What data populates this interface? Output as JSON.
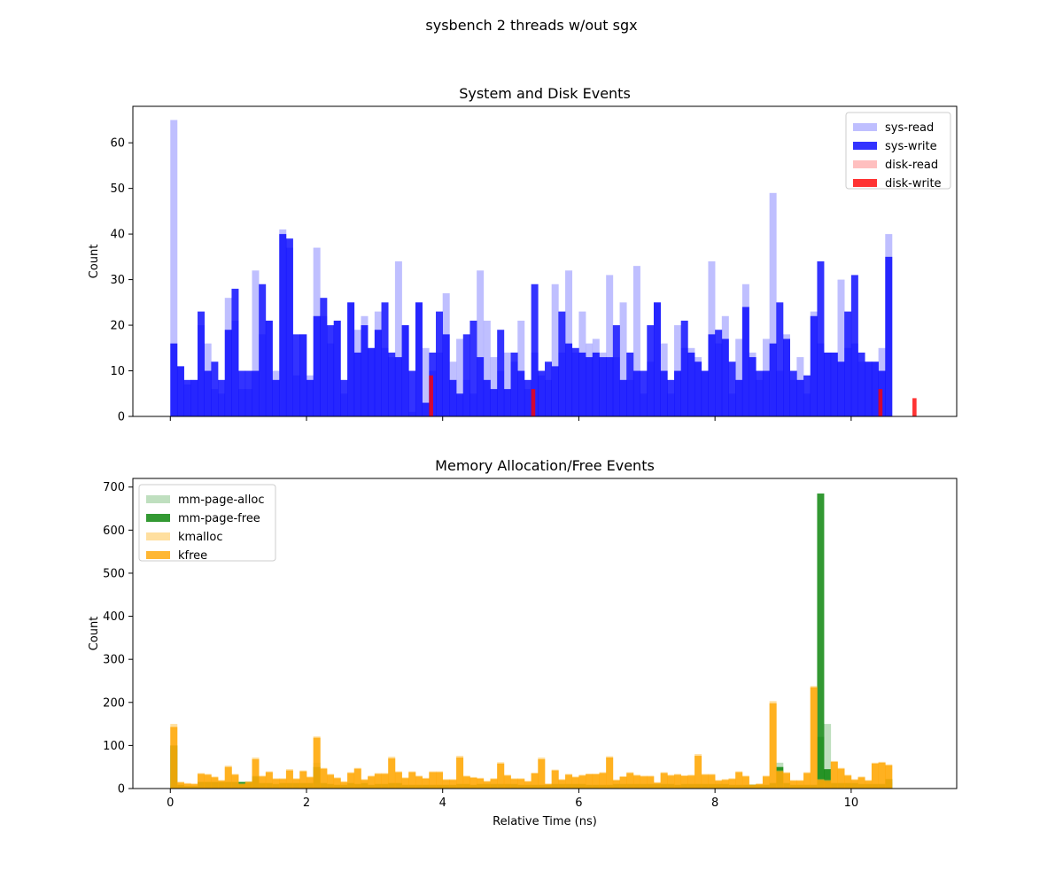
{
  "figure_title": "sysbench 2 threads w/out sgx",
  "chart_data": [
    {
      "type": "bar",
      "title": "System and Disk Events",
      "xlabel": "",
      "ylabel": "Count",
      "xlim": [
        -0.55,
        11.55
      ],
      "ylim": [
        0,
        68
      ],
      "yticks": [
        0,
        10,
        20,
        30,
        40,
        50,
        60
      ],
      "xticks": [
        0,
        2,
        4,
        6,
        8,
        10
      ],
      "show_x_tick_labels": false,
      "legend_position": "upper right",
      "bin_start": 0.0,
      "bin_width": 0.1,
      "series": [
        {
          "name": "sys-read",
          "color": "#7f7fff",
          "values": [
            65,
            11,
            7,
            8,
            20,
            16,
            6,
            5,
            26,
            21,
            6,
            6,
            32,
            18,
            21,
            10,
            41,
            37,
            9,
            18,
            9,
            37,
            22,
            16,
            21,
            5,
            25,
            19,
            22,
            15,
            23,
            15,
            13,
            34,
            20,
            1,
            25,
            15,
            10,
            14,
            27,
            12,
            17,
            8,
            5,
            32,
            21,
            13,
            10,
            14,
            12,
            21,
            6,
            14,
            9,
            8,
            29,
            14,
            32,
            14,
            23,
            16,
            17,
            14,
            31,
            13,
            25,
            8,
            33,
            5,
            12,
            25,
            16,
            5,
            20,
            15,
            15,
            13,
            10,
            34,
            16,
            22,
            5,
            17,
            29,
            14,
            8,
            17,
            49,
            10,
            18,
            8,
            13,
            5,
            23,
            16,
            14,
            14,
            30,
            15,
            16,
            12,
            12,
            12,
            15,
            40
          ]
        },
        {
          "name": "sys-write",
          "color": "#0000ff",
          "values": [
            16,
            11,
            8,
            8,
            23,
            10,
            12,
            8,
            19,
            28,
            10,
            10,
            10,
            29,
            21,
            8,
            40,
            39,
            18,
            18,
            8,
            22,
            26,
            20,
            21,
            8,
            25,
            14,
            20,
            15,
            19,
            25,
            14,
            13,
            20,
            10,
            25,
            3,
            14,
            23,
            18,
            8,
            5,
            18,
            21,
            13,
            8,
            6,
            19,
            6,
            14,
            10,
            8,
            29,
            10,
            12,
            11,
            23,
            16,
            15,
            14,
            13,
            14,
            13,
            13,
            20,
            8,
            14,
            10,
            10,
            20,
            25,
            10,
            8,
            10,
            21,
            14,
            12,
            10,
            18,
            19,
            17,
            12,
            8,
            24,
            13,
            10,
            10,
            16,
            25,
            17,
            10,
            8,
            9,
            22,
            34,
            14,
            14,
            12,
            23,
            31,
            14,
            12,
            12,
            10,
            35
          ]
        },
        {
          "name": "disk-read",
          "color": "#ff7f7f",
          "values": []
        },
        {
          "name": "disk-write",
          "color": "#ff0000",
          "bars": [
            {
              "x": 3.8,
              "y": 9
            },
            {
              "x": 5.3,
              "y": 6
            },
            {
              "x": 10.4,
              "y": 6
            },
            {
              "x": 10.9,
              "y": 4
            }
          ]
        }
      ]
    },
    {
      "type": "bar",
      "title": "Memory Allocation/Free Events",
      "xlabel": "Relative Time (ns)",
      "ylabel": "Count",
      "xlim": [
        -0.55,
        11.55
      ],
      "ylim": [
        0,
        720
      ],
      "yticks": [
        0,
        100,
        200,
        300,
        400,
        500,
        600,
        700
      ],
      "xticks": [
        0,
        2,
        4,
        6,
        8,
        10
      ],
      "xticklabels": [
        "0",
        "2",
        "4",
        "6",
        "8",
        "10"
      ],
      "legend_position": "upper left",
      "bin_start": 0.0,
      "bin_width": 0.1,
      "series": [
        {
          "name": "mm-page-alloc",
          "color": "#7fbf7f",
          "values": [
            90,
            10,
            6,
            6,
            16,
            16,
            16,
            16,
            16,
            16,
            16,
            16,
            30,
            14,
            14,
            12,
            14,
            14,
            14,
            14,
            14,
            60,
            14,
            12,
            10,
            10,
            14,
            12,
            14,
            10,
            12,
            12,
            14,
            14,
            10,
            10,
            10,
            10,
            10,
            10,
            10,
            10,
            12,
            12,
            10,
            12,
            12,
            12,
            12,
            12,
            12,
            10,
            10,
            10,
            10,
            10,
            12,
            12,
            12,
            12,
            12,
            10,
            10,
            10,
            10,
            12,
            12,
            12,
            12,
            12,
            12,
            12,
            12,
            12,
            10,
            12,
            12,
            12,
            12,
            12,
            12,
            12,
            10,
            10,
            10,
            10,
            10,
            10,
            14,
            60,
            14,
            10,
            10,
            10,
            10,
            120,
            150,
            14,
            14,
            14,
            14,
            12,
            12,
            12,
            12,
            14
          ]
        },
        {
          "name": "mm-page-free",
          "color": "#008000",
          "values": [
            100,
            8,
            5,
            5,
            15,
            15,
            15,
            15,
            15,
            15,
            15,
            15,
            28,
            12,
            12,
            10,
            12,
            12,
            12,
            12,
            12,
            50,
            12,
            10,
            8,
            8,
            12,
            10,
            12,
            8,
            10,
            10,
            12,
            12,
            8,
            8,
            8,
            8,
            8,
            8,
            8,
            8,
            10,
            10,
            8,
            10,
            10,
            10,
            10,
            10,
            10,
            8,
            8,
            8,
            8,
            8,
            10,
            10,
            10,
            10,
            10,
            8,
            8,
            8,
            8,
            10,
            10,
            10,
            10,
            10,
            10,
            10,
            10,
            10,
            8,
            10,
            10,
            10,
            10,
            10,
            10,
            10,
            8,
            8,
            8,
            8,
            8,
            8,
            12,
            50,
            12,
            8,
            8,
            8,
            8,
            685,
            45,
            12,
            12,
            12,
            12,
            10,
            10,
            10,
            10,
            22
          ]
        },
        {
          "name": "kmalloc",
          "color": "#ffbf40",
          "values": [
            150,
            16,
            13,
            12,
            36,
            34,
            28,
            20,
            53,
            34,
            12,
            17,
            72,
            30,
            40,
            24,
            24,
            45,
            24,
            42,
            28,
            121,
            48,
            34,
            26,
            17,
            38,
            48,
            22,
            30,
            36,
            36,
            74,
            40,
            26,
            40,
            30,
            25,
            40,
            40,
            22,
            22,
            76,
            30,
            27,
            25,
            18,
            24,
            61,
            32,
            24,
            24,
            18,
            37,
            72,
            12,
            44,
            22,
            34,
            28,
            32,
            35,
            35,
            38,
            75,
            21,
            29,
            38,
            32,
            30,
            30,
            15,
            38,
            32,
            34,
            31,
            32,
            80,
            34,
            34,
            20,
            22,
            24,
            40,
            30,
            10,
            12,
            30,
            203,
            42,
            38,
            20,
            20,
            38,
            238,
            22,
            20,
            64,
            48,
            32,
            22,
            28,
            20,
            60,
            62,
            56
          ]
        },
        {
          "name": "kfree",
          "color": "#ffa500",
          "values": [
            143,
            14,
            11,
            10,
            34,
            32,
            26,
            18,
            50,
            32,
            10,
            15,
            68,
            28,
            38,
            22,
            22,
            42,
            22,
            40,
            26,
            118,
            46,
            32,
            24,
            15,
            36,
            46,
            20,
            28,
            34,
            34,
            70,
            38,
            24,
            38,
            28,
            23,
            38,
            38,
            20,
            20,
            72,
            28,
            25,
            23,
            16,
            22,
            58,
            30,
            22,
            22,
            16,
            35,
            68,
            10,
            42,
            20,
            32,
            26,
            30,
            33,
            33,
            36,
            72,
            19,
            27,
            36,
            30,
            28,
            28,
            13,
            36,
            30,
            32,
            29,
            30,
            76,
            32,
            32,
            18,
            20,
            22,
            38,
            28,
            8,
            10,
            28,
            198,
            40,
            36,
            18,
            18,
            36,
            235,
            20,
            18,
            62,
            46,
            30,
            20,
            26,
            18,
            58,
            60,
            54
          ]
        }
      ]
    }
  ]
}
